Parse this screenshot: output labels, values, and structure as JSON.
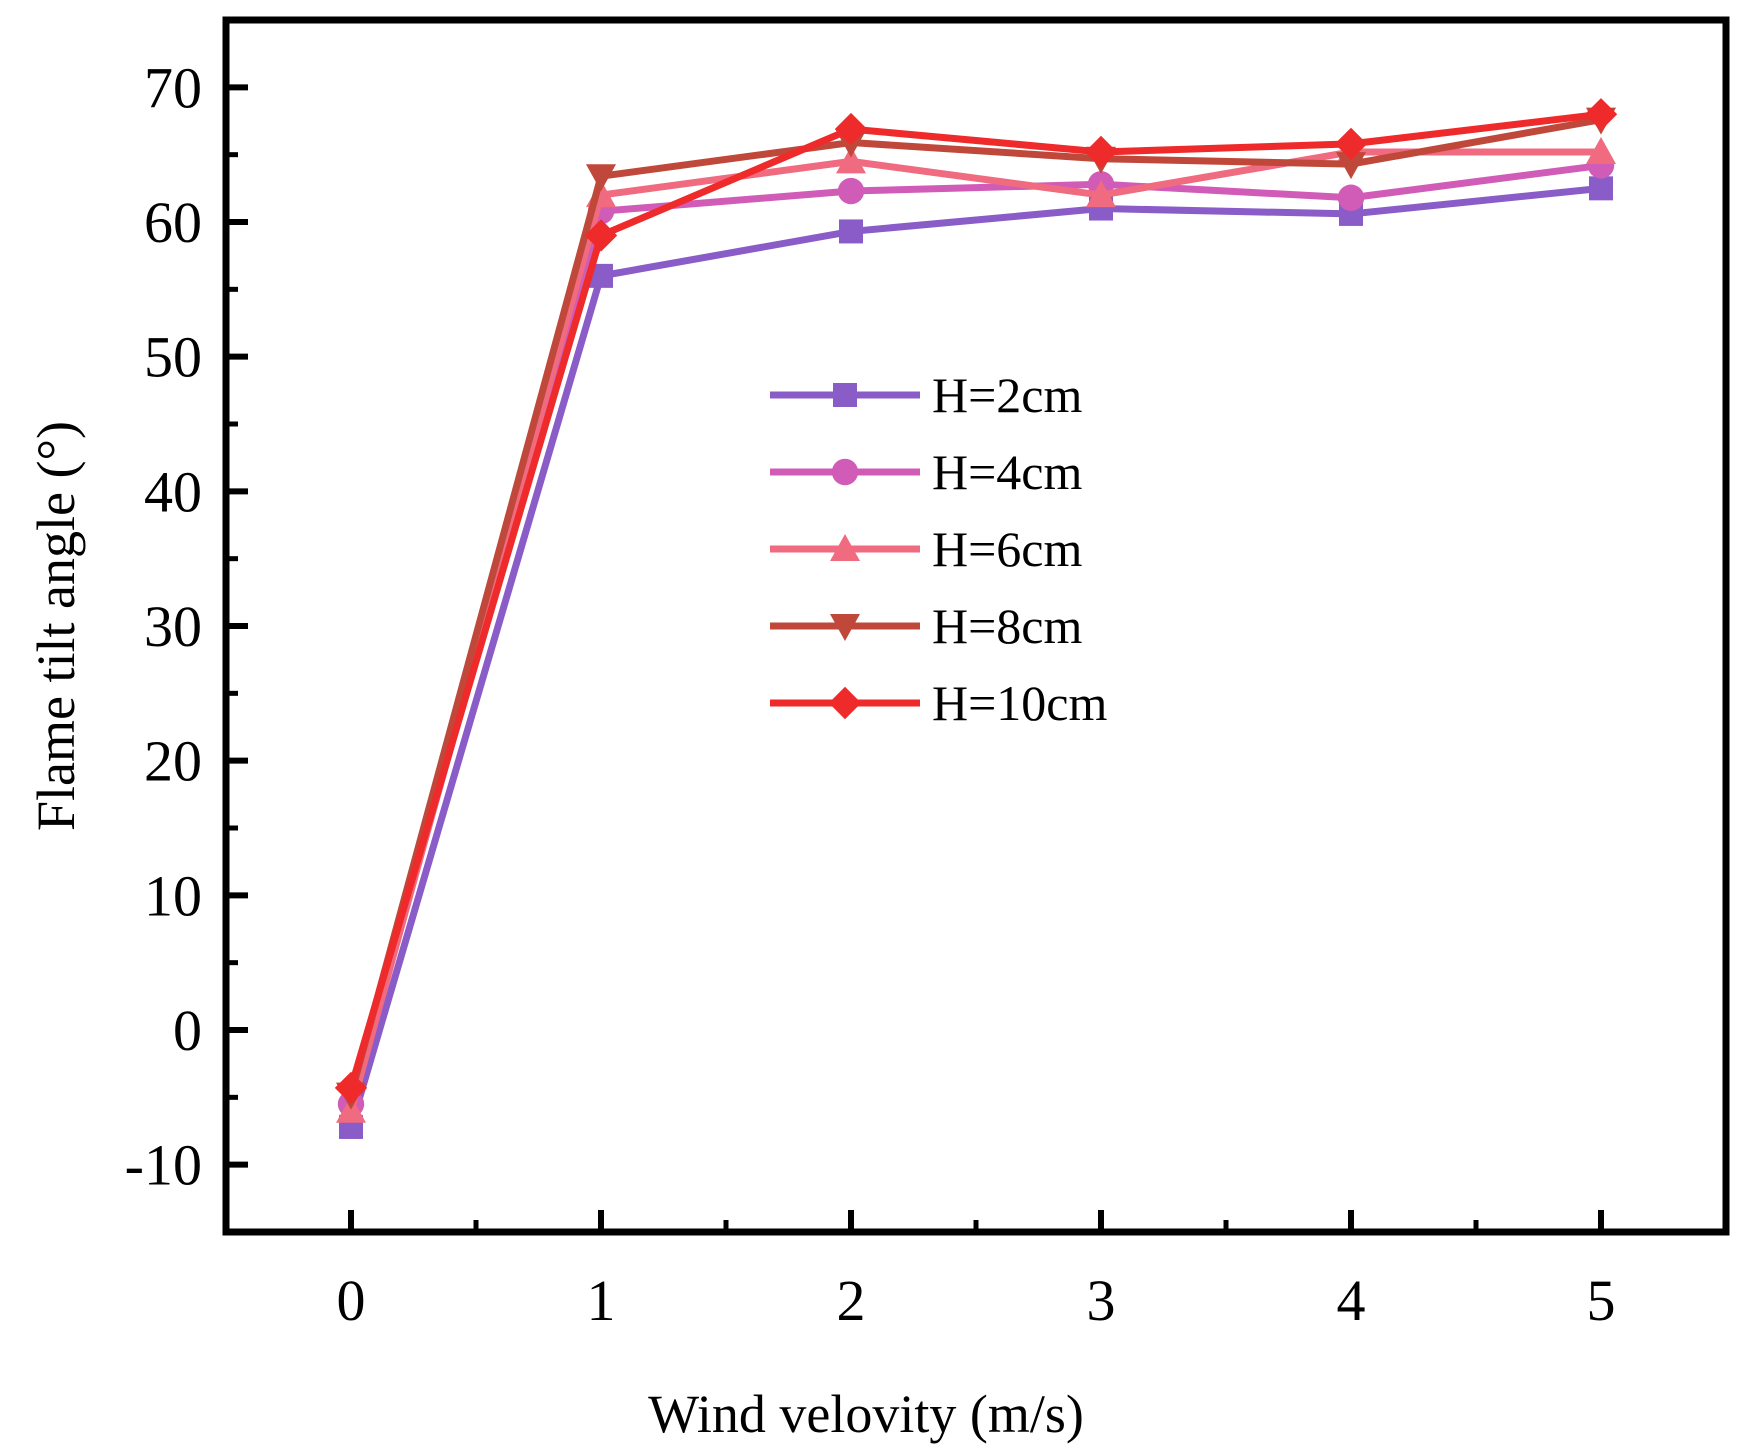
{
  "chart_data": {
    "type": "line",
    "title": "",
    "xlabel": "Wind velovity (m/s)",
    "ylabel": "Flame tilt angle (°)",
    "x": [
      0,
      1,
      2,
      3,
      4,
      5
    ],
    "xticks": [
      "0",
      "1",
      "2",
      "3",
      "4",
      "5"
    ],
    "yticks": [
      "-10",
      "0",
      "10",
      "20",
      "30",
      "40",
      "50",
      "60",
      "70"
    ],
    "xlim": [
      -0.5,
      5.5
    ],
    "ylim": [
      -15,
      75
    ],
    "grid": false,
    "legend_position": "center",
    "series": [
      {
        "name": "H=2cm",
        "marker": "square",
        "color": "#8a5cc8",
        "values": [
          -7.2,
          56.0,
          59.3,
          61.0,
          60.6,
          62.5
        ]
      },
      {
        "name": "H=4cm",
        "marker": "circle",
        "color": "#d05cb8",
        "values": [
          -5.5,
          60.8,
          62.3,
          62.8,
          61.8,
          64.2
        ]
      },
      {
        "name": "H=6cm",
        "marker": "triangle-up",
        "color": "#f06a80",
        "values": [
          -6.0,
          62.0,
          64.5,
          62.0,
          65.2,
          65.2
        ]
      },
      {
        "name": "H=8cm",
        "marker": "triangle-down",
        "color": "#c0483a",
        "values": [
          -4.8,
          63.4,
          65.9,
          64.7,
          64.3,
          67.6
        ]
      },
      {
        "name": "H=10cm",
        "marker": "diamond",
        "color": "#ee2a2a",
        "values": [
          -4.3,
          59.0,
          66.9,
          65.2,
          65.8,
          68.0
        ]
      }
    ]
  }
}
